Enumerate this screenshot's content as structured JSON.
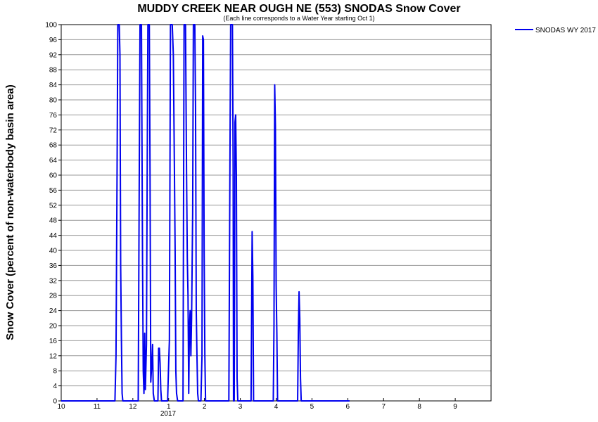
{
  "chart_data": {
    "type": "line",
    "title": "MUDDY CREEK NEAR OUGH NE (553) SNODAS Snow Cover",
    "subtitle": "(Each line corresponds to a Water Year starting Oct 1)",
    "ylabel": "Snow Cover (percent of non-waterbody basin area)",
    "xlabel": "",
    "ylim": [
      0,
      100
    ],
    "xlim": [
      0,
      12
    ],
    "grid": true,
    "legend_position": "top-right",
    "y_ticks": [
      0,
      4,
      8,
      12,
      16,
      20,
      24,
      28,
      32,
      36,
      40,
      44,
      48,
      52,
      56,
      60,
      64,
      68,
      72,
      76,
      80,
      84,
      88,
      92,
      96,
      100
    ],
    "x_ticks": [
      {
        "x": 0,
        "label": "10"
      },
      {
        "x": 1,
        "label": "11"
      },
      {
        "x": 2,
        "label": "12"
      },
      {
        "x": 3,
        "label": "1"
      },
      {
        "x": 4,
        "label": "2"
      },
      {
        "x": 5,
        "label": "3"
      },
      {
        "x": 6,
        "label": "4"
      },
      {
        "x": 7,
        "label": "5"
      },
      {
        "x": 8,
        "label": "6"
      },
      {
        "x": 9,
        "label": "7"
      },
      {
        "x": 10,
        "label": "8"
      },
      {
        "x": 11,
        "label": "9"
      }
    ],
    "year_label": {
      "x": 3,
      "label": "2017"
    },
    "series": [
      {
        "name": "SNODAS WY 2017",
        "color": "#0000ee",
        "points": [
          [
            0,
            0
          ],
          [
            1.5,
            0
          ],
          [
            1.53,
            12
          ],
          [
            1.56,
            62
          ],
          [
            1.58,
            100
          ],
          [
            1.62,
            100
          ],
          [
            1.64,
            92
          ],
          [
            1.66,
            36
          ],
          [
            1.68,
            17
          ],
          [
            1.7,
            2
          ],
          [
            1.72,
            0
          ],
          [
            2.15,
            0
          ],
          [
            2.18,
            62
          ],
          [
            2.2,
            100
          ],
          [
            2.24,
            100
          ],
          [
            2.27,
            38
          ],
          [
            2.29,
            8
          ],
          [
            2.31,
            2
          ],
          [
            2.33,
            18
          ],
          [
            2.35,
            3
          ],
          [
            2.38,
            15
          ],
          [
            2.4,
            60
          ],
          [
            2.42,
            100
          ],
          [
            2.46,
            100
          ],
          [
            2.48,
            60
          ],
          [
            2.5,
            5
          ],
          [
            2.53,
            10
          ],
          [
            2.55,
            15
          ],
          [
            2.57,
            2
          ],
          [
            2.6,
            0
          ],
          [
            2.7,
            0
          ],
          [
            2.72,
            14
          ],
          [
            2.74,
            14
          ],
          [
            2.76,
            10
          ],
          [
            2.78,
            3
          ],
          [
            2.8,
            0
          ],
          [
            2.97,
            0
          ],
          [
            3.0,
            10
          ],
          [
            3.02,
            16
          ],
          [
            3.05,
            100
          ],
          [
            3.1,
            100
          ],
          [
            3.13,
            92
          ],
          [
            3.16,
            62
          ],
          [
            3.18,
            40
          ],
          [
            3.2,
            8
          ],
          [
            3.22,
            2
          ],
          [
            3.25,
            0
          ],
          [
            3.4,
            0
          ],
          [
            3.43,
            100
          ],
          [
            3.47,
            100
          ],
          [
            3.5,
            60
          ],
          [
            3.52,
            38
          ],
          [
            3.54,
            28
          ],
          [
            3.56,
            2
          ],
          [
            3.58,
            20
          ],
          [
            3.6,
            24
          ],
          [
            3.62,
            12
          ],
          [
            3.64,
            22
          ],
          [
            3.67,
            50
          ],
          [
            3.69,
            100
          ],
          [
            3.73,
            100
          ],
          [
            3.75,
            78
          ],
          [
            3.77,
            24
          ],
          [
            3.79,
            12
          ],
          [
            3.81,
            2
          ],
          [
            3.83,
            0
          ],
          [
            3.9,
            0
          ],
          [
            3.93,
            12
          ],
          [
            3.95,
            97
          ],
          [
            3.97,
            96
          ],
          [
            3.99,
            40
          ],
          [
            4.01,
            12
          ],
          [
            4.03,
            0
          ],
          [
            4.68,
            0
          ],
          [
            4.71,
            62
          ],
          [
            4.73,
            100
          ],
          [
            4.78,
            100
          ],
          [
            4.8,
            62
          ],
          [
            4.81,
            0
          ],
          [
            4.83,
            0
          ],
          [
            4.85,
            74
          ],
          [
            4.87,
            76
          ],
          [
            4.89,
            60
          ],
          [
            4.91,
            6
          ],
          [
            4.93,
            0
          ],
          [
            5.3,
            0
          ],
          [
            5.33,
            45
          ],
          [
            5.35,
            33
          ],
          [
            5.37,
            0
          ],
          [
            5.92,
            0
          ],
          [
            5.94,
            20
          ],
          [
            5.96,
            84
          ],
          [
            5.98,
            73
          ],
          [
            6.0,
            31
          ],
          [
            6.02,
            18
          ],
          [
            6.04,
            0
          ],
          [
            6.6,
            0
          ],
          [
            6.62,
            18
          ],
          [
            6.64,
            29
          ],
          [
            6.66,
            22
          ],
          [
            6.68,
            6
          ],
          [
            6.7,
            0
          ],
          [
            8.05,
            0
          ]
        ]
      }
    ]
  }
}
